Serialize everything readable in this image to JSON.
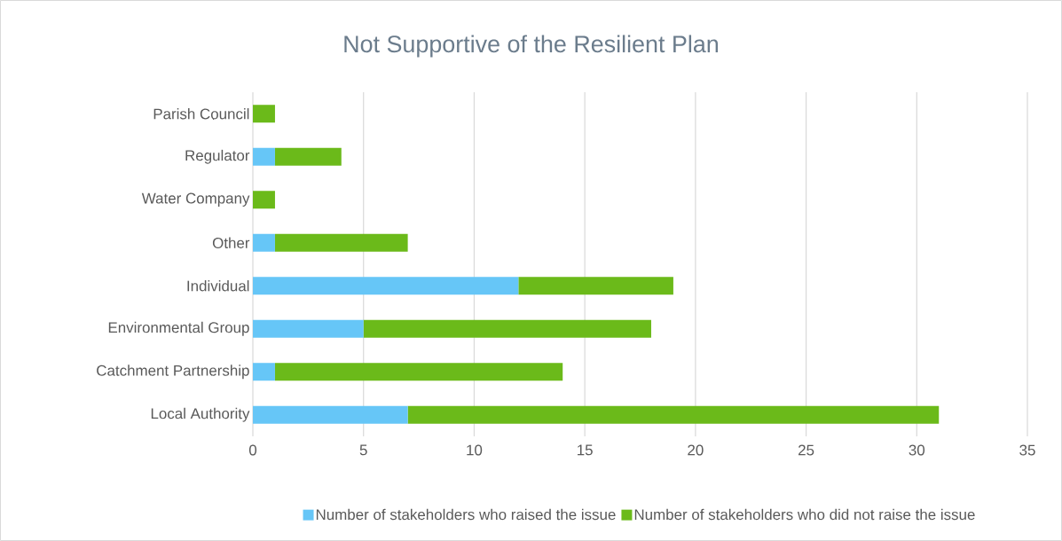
{
  "chart_data": {
    "type": "bar",
    "orientation": "horizontal",
    "stacked": true,
    "title": "Not Supportive of the Resilient Plan",
    "categories": [
      "Parish Council",
      "Regulator",
      "Water Company",
      "Other",
      "Individual",
      "Environmental Group",
      "Catchment Partnership",
      "Local Authority"
    ],
    "series": [
      {
        "name": "Number of stakeholders who raised the issue",
        "color": "#66c6f7",
        "values": [
          0,
          1,
          0,
          1,
          12,
          5,
          1,
          7
        ]
      },
      {
        "name": "Number of stakeholders who did not raise the issue",
        "color": "#6bba1a",
        "values": [
          1,
          3,
          1,
          6,
          7,
          13,
          13,
          24
        ]
      }
    ],
    "xlim": [
      0,
      35
    ],
    "xticks": [
      0,
      5,
      10,
      15,
      20,
      25,
      30,
      35
    ],
    "grid": "x",
    "legend": "bottom"
  }
}
